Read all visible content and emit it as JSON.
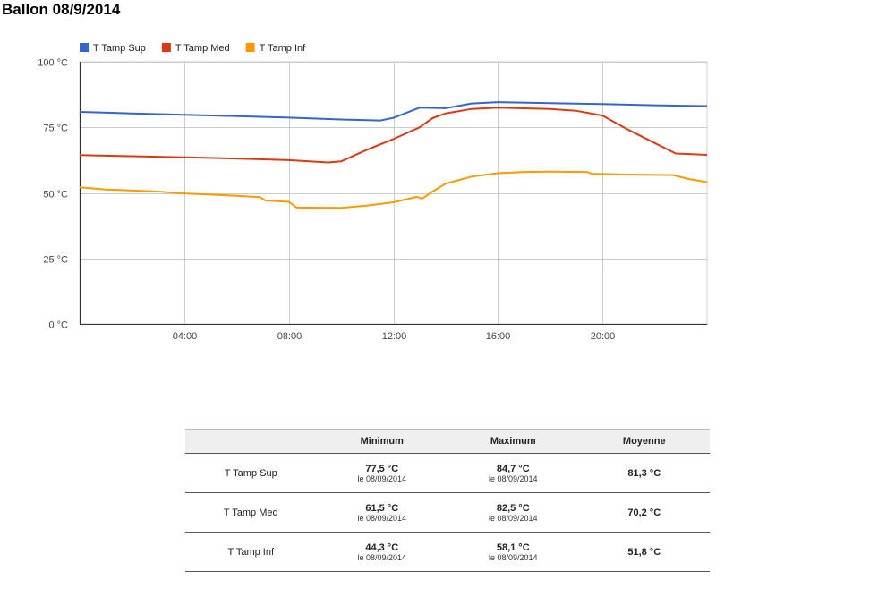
{
  "title": "Ballon 08/9/2014",
  "chart_data": {
    "type": "line",
    "x_unit": "hour",
    "xlim": [
      0,
      24
    ],
    "ylim": [
      0,
      100
    ],
    "y_ticks": [
      0,
      25,
      50,
      75,
      100
    ],
    "y_tick_labels": [
      "0 °C",
      "25 °C",
      "50 °C",
      "75 °C",
      "100 °C"
    ],
    "x_ticks": [
      4,
      8,
      12,
      16,
      20
    ],
    "x_tick_labels": [
      "04:00",
      "08:00",
      "12:00",
      "16:00",
      "20:00"
    ],
    "grid": true,
    "legend_position": "top-left",
    "series": [
      {
        "name": "T Tamp Sup",
        "color": "#3366cc",
        "points": [
          [
            0,
            80.9
          ],
          [
            2,
            80.3
          ],
          [
            4,
            79.8
          ],
          [
            6,
            79.3
          ],
          [
            8,
            78.7
          ],
          [
            10,
            78.0
          ],
          [
            11.5,
            77.6
          ],
          [
            12,
            78.6
          ],
          [
            13,
            82.5
          ],
          [
            14,
            82.3
          ],
          [
            15,
            84.1
          ],
          [
            16,
            84.6
          ],
          [
            18,
            84.2
          ],
          [
            20,
            83.9
          ],
          [
            22,
            83.4
          ],
          [
            24,
            83.1
          ]
        ]
      },
      {
        "name": "T Tamp Med",
        "color": "#dc3912",
        "points": [
          [
            0,
            64.4
          ],
          [
            2,
            64.0
          ],
          [
            4,
            63.6
          ],
          [
            6,
            63.1
          ],
          [
            8,
            62.5
          ],
          [
            9.5,
            61.6
          ],
          [
            10,
            62.0
          ],
          [
            11,
            66.5
          ],
          [
            12,
            70.5
          ],
          [
            13,
            75.0
          ],
          [
            13.5,
            78.5
          ],
          [
            14,
            80.3
          ],
          [
            15,
            82.0
          ],
          [
            16,
            82.5
          ],
          [
            18,
            82.0
          ],
          [
            19,
            81.3
          ],
          [
            20,
            79.5
          ],
          [
            21,
            74.0
          ],
          [
            22,
            69.0
          ],
          [
            22.8,
            65.0
          ],
          [
            24,
            64.5
          ]
        ]
      },
      {
        "name": "T Tamp Inf",
        "color": "#ff9900",
        "points": [
          [
            0,
            52.1
          ],
          [
            1,
            51.3
          ],
          [
            3,
            50.5
          ],
          [
            4,
            49.8
          ],
          [
            6,
            48.9
          ],
          [
            6.9,
            48.4
          ],
          [
            7.1,
            47.1
          ],
          [
            8,
            46.6
          ],
          [
            8.3,
            44.4
          ],
          [
            10,
            44.3
          ],
          [
            11,
            45.2
          ],
          [
            12,
            46.4
          ],
          [
            12.9,
            48.5
          ],
          [
            13.1,
            47.8
          ],
          [
            13.5,
            50.5
          ],
          [
            14,
            53.5
          ],
          [
            15,
            56.2
          ],
          [
            16,
            57.5
          ],
          [
            17,
            58.0
          ],
          [
            18,
            58.1
          ],
          [
            19.4,
            58.0
          ],
          [
            19.6,
            57.3
          ],
          [
            21,
            57.0
          ],
          [
            22.7,
            56.8
          ],
          [
            23.3,
            55.3
          ],
          [
            24,
            54.1
          ]
        ]
      }
    ]
  },
  "table": {
    "headers": [
      "",
      "Minimum",
      "Maximum",
      "Moyenne"
    ],
    "rows": [
      {
        "name": "T Tamp Sup",
        "min": "77,5 °C",
        "min_date": "le 08/09/2014",
        "max": "84,7 °C",
        "max_date": "le 08/09/2014",
        "avg": "81,3 °C"
      },
      {
        "name": "T Tamp Med",
        "min": "61,5 °C",
        "min_date": "le 08/09/2014",
        "max": "82,5 °C",
        "max_date": "le 08/09/2014",
        "avg": "70,2 °C"
      },
      {
        "name": "T Tamp Inf",
        "min": "44,3 °C",
        "min_date": "le 08/09/2014",
        "max": "58,1 °C",
        "max_date": "le 08/09/2014",
        "avg": "51,8 °C"
      }
    ]
  }
}
